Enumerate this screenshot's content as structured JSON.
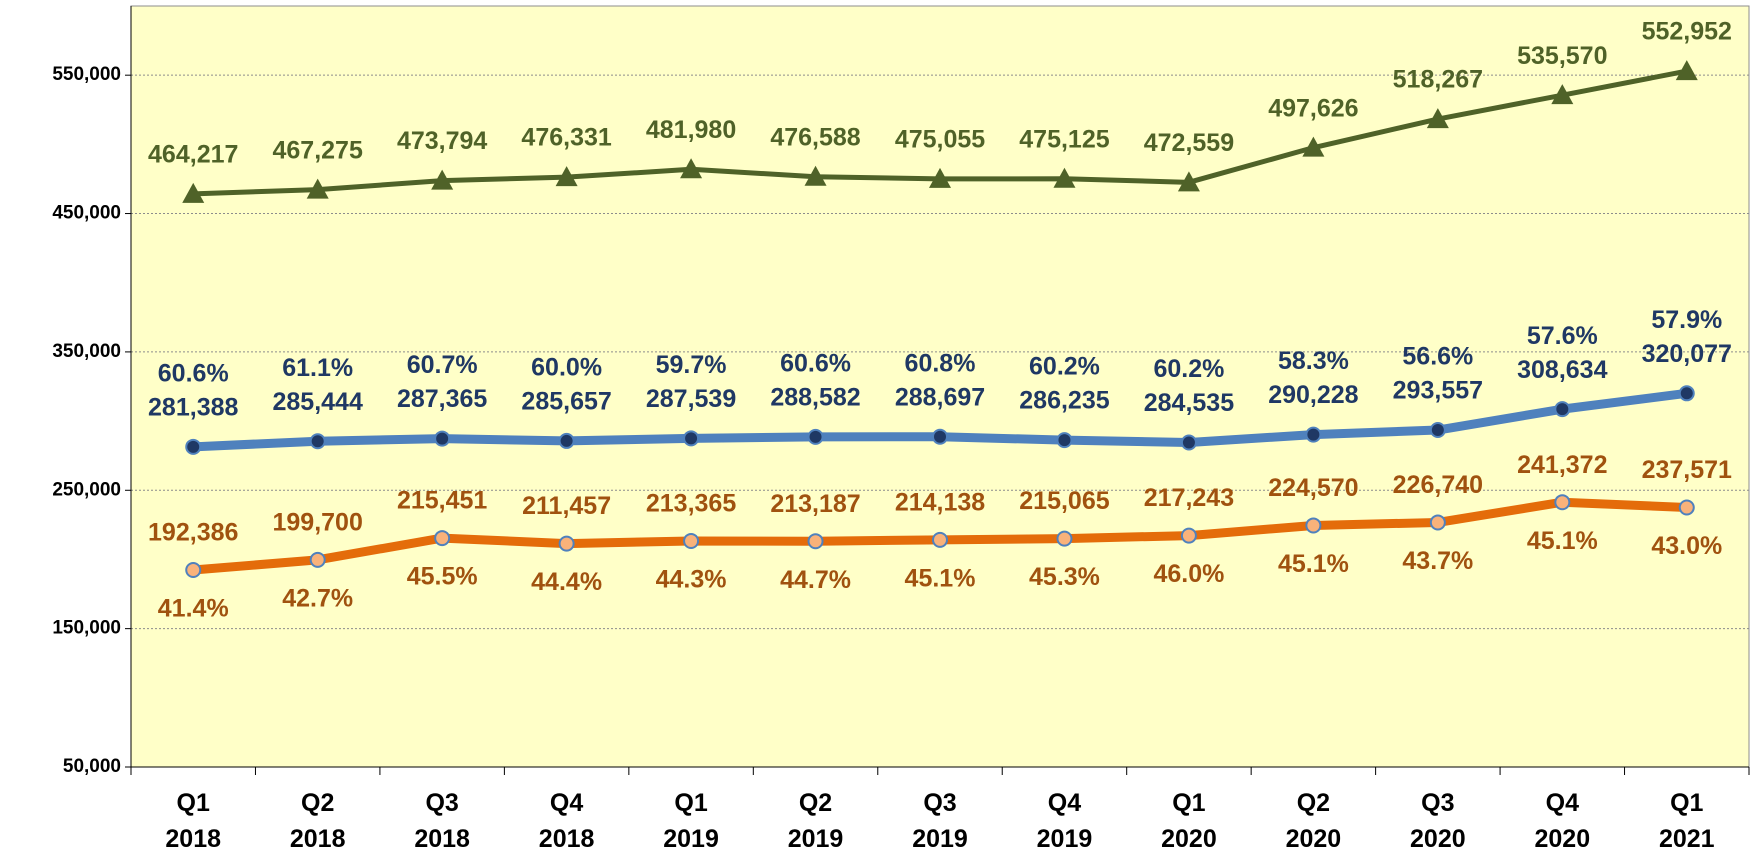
{
  "chart_data": {
    "type": "line",
    "categories": [
      "Q1 2018",
      "Q2 2018",
      "Q3 2018",
      "Q4 2018",
      "Q1 2019",
      "Q2 2019",
      "Q3 2019",
      "Q4 2019",
      "Q1 2020",
      "Q2 2020",
      "Q3 2020",
      "Q4 2020",
      "Q1 2021"
    ],
    "ylim": [
      50000,
      600000
    ],
    "yticks": [
      {
        "value": 50000,
        "label": "50,000"
      },
      {
        "value": 150000,
        "label": "150,000"
      },
      {
        "value": 250000,
        "label": "250,000"
      },
      {
        "value": 350000,
        "label": "350,000"
      },
      {
        "value": 450000,
        "label": "450,000"
      },
      {
        "value": 550000,
        "label": "550,000"
      }
    ],
    "grid": true,
    "background": "#ffffc8",
    "series": [
      {
        "color": "#4f6228",
        "marker": "triangle",
        "label_color": "#4f6228",
        "values": [
          464217,
          467275,
          473794,
          476331,
          481980,
          476588,
          475055,
          475125,
          472559,
          497626,
          518267,
          535570,
          552952
        ],
        "value_labels": [
          "464,217",
          "467,275",
          "473,794",
          "476,331",
          "481,980",
          "476,588",
          "475,055",
          "475,125",
          "472,559",
          "497,626",
          "518,267",
          "535,570",
          "552,952"
        ]
      },
      {
        "color": "#4f81bd",
        "marker": "circle",
        "marker_fill": "#1f3864",
        "label_color": "#1f3864",
        "values": [
          281388,
          285444,
          287365,
          285657,
          287539,
          288582,
          288697,
          286235,
          284535,
          290228,
          293557,
          308634,
          320077
        ],
        "value_labels": [
          "281,388",
          "285,444",
          "287,365",
          "285,657",
          "287,539",
          "288,582",
          "288,697",
          "286,235",
          "284,535",
          "290,228",
          "293,557",
          "308,634",
          "320,077"
        ],
        "percent_labels": [
          "60.6%",
          "61.1%",
          "60.7%",
          "60.0%",
          "59.7%",
          "60.6%",
          "60.8%",
          "60.2%",
          "60.2%",
          "58.3%",
          "56.6%",
          "57.6%",
          "57.9%"
        ]
      },
      {
        "color": "#e46c0a",
        "marker": "circle",
        "marker_fill": "#f9b27a",
        "label_color": "#a0520f",
        "values": [
          192386,
          199700,
          215451,
          211457,
          213365,
          213187,
          214138,
          215065,
          217243,
          224570,
          226740,
          241372,
          237571
        ],
        "value_labels": [
          "192,386",
          "199,700",
          "215,451",
          "211,457",
          "213,365",
          "213,187",
          "214,138",
          "215,065",
          "217,243",
          "224,570",
          "226,740",
          "241,372",
          "237,571"
        ],
        "percent_labels": [
          "41.4%",
          "42.7%",
          "45.5%",
          "44.4%",
          "44.3%",
          "44.7%",
          "45.1%",
          "45.3%",
          "46.0%",
          "45.1%",
          "43.7%",
          "45.1%",
          "43.0%"
        ]
      }
    ]
  }
}
